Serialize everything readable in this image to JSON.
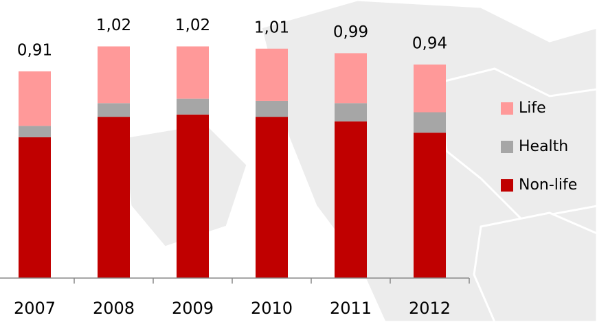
{
  "chart_data": {
    "type": "stacked-bar",
    "categories": [
      "2007",
      "2008",
      "2009",
      "2010",
      "2011",
      "2012"
    ],
    "series": [
      {
        "name": "Non-life",
        "color": "#c00000",
        "values": [
          0.62,
          0.71,
          0.72,
          0.71,
          0.69,
          0.64
        ]
      },
      {
        "name": "Health",
        "color": "#a6a6a6",
        "values": [
          0.05,
          0.06,
          0.07,
          0.07,
          0.08,
          0.09
        ]
      },
      {
        "name": "Life",
        "color": "#ff9999",
        "values": [
          0.24,
          0.25,
          0.23,
          0.23,
          0.22,
          0.21
        ]
      }
    ],
    "totals": {
      "values": [
        0.91,
        1.02,
        1.02,
        1.01,
        0.99,
        0.94
      ],
      "value_labels": [
        "0,91",
        "1,02",
        "1,02",
        "1,01",
        "0,99",
        "0,94"
      ]
    },
    "ylim": [
      0,
      1.2
    ],
    "legend": "right"
  }
}
